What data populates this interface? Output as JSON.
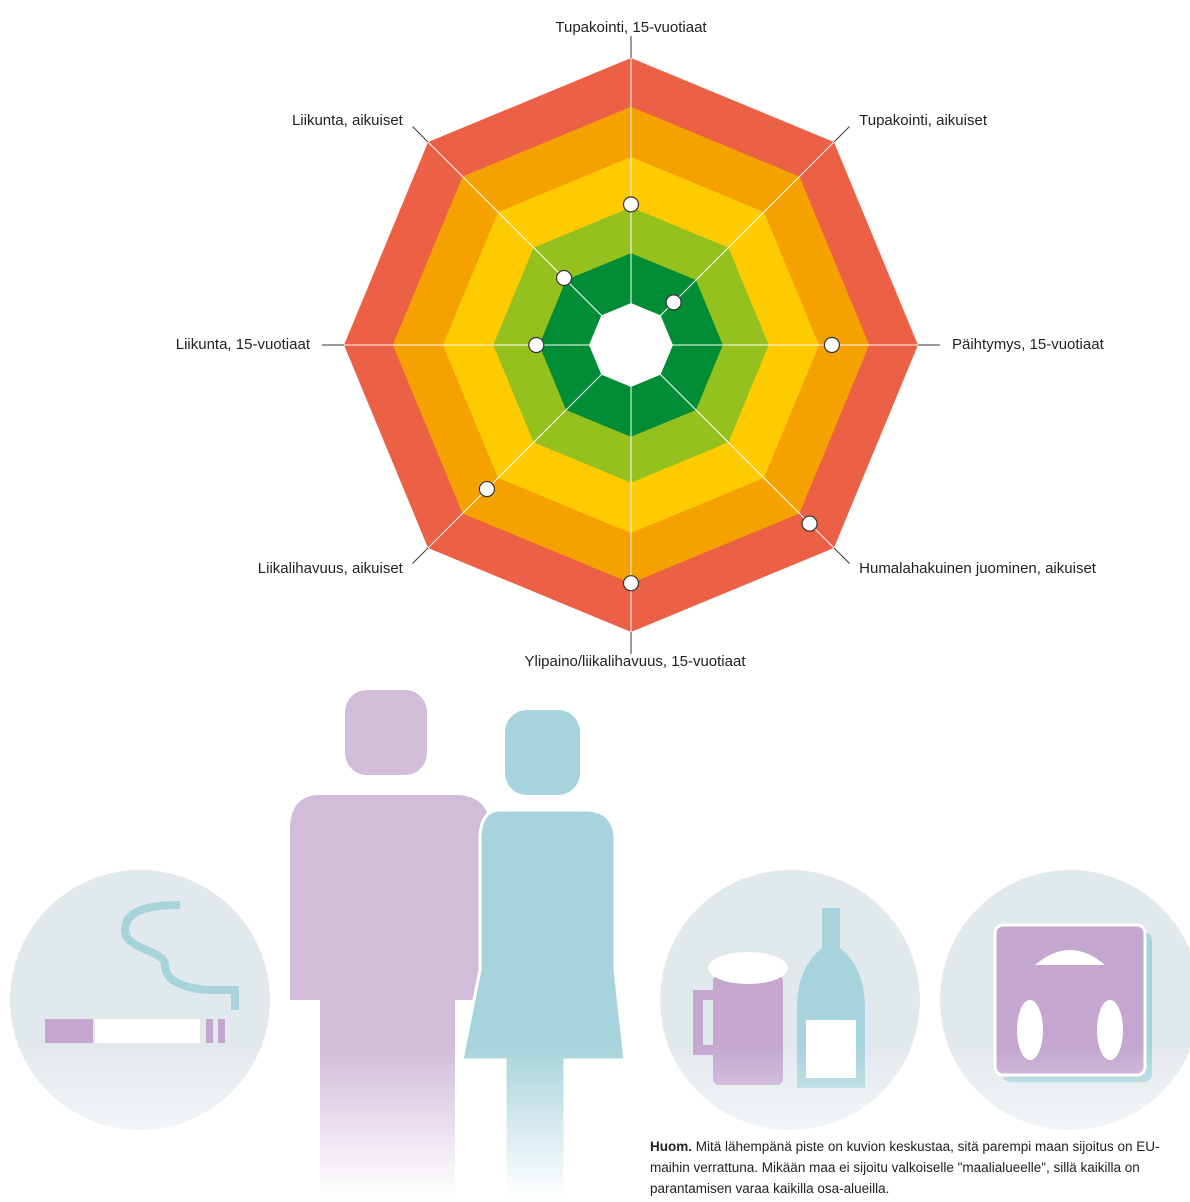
{
  "chart_data": {
    "type": "radar",
    "categories": [
      "Tupakointi, 15-vuotiaat",
      "Tupakointi, aikuiset",
      "Päihtymys, 15-vuotiaat",
      "Humalahakuinen juominen, aikuiset",
      "Ylipaino/liikalihavuus, 15-vuotiaat",
      "Liikalihavuus, aikuiset",
      "Liikunta, 15-vuotiaat",
      "Liikunta, aikuiset"
    ],
    "values": [
      49,
      21,
      70,
      88,
      83,
      71,
      33,
      33
    ],
    "color": "#ffffff",
    "rlim": [
      0,
      100
    ],
    "bands": [
      {
        "to": 100,
        "color": "#ec6045"
      },
      {
        "to": 83,
        "color": "#f5a200"
      },
      {
        "to": 65.5,
        "color": "#fecb00"
      },
      {
        "to": 48,
        "color": "#95c11f"
      },
      {
        "to": 32,
        "color": "#008d36"
      },
      {
        "to": 14.6,
        "color": "#ffffff"
      }
    ],
    "note_bold": "Huom.",
    "note": "Mitä lähempänä piste on kuvion keskustaa, sitä parempi maan sijoitus on EU-maihin verrattuna. Mikään maa ei sijoitu valkoiselle \"maalialueelle\", sillä kaikilla on parantamisen varaa kaikilla osa-alueilla."
  }
}
